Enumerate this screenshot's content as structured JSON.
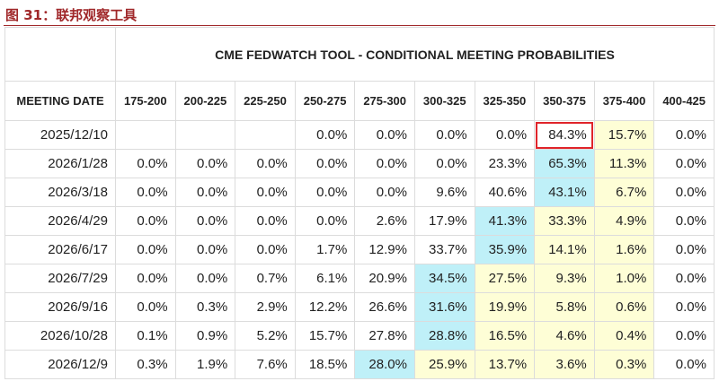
{
  "header": {
    "title": "图 31：联邦观察工具"
  },
  "table": {
    "title": "CME FEDWATCH TOOL - CONDITIONAL MEETING PROBABILITIES",
    "columns": [
      "MEETING DATE",
      "175-200",
      "200-225",
      "225-250",
      "250-275",
      "275-300",
      "300-325",
      "325-350",
      "350-375",
      "375-400",
      "400-425"
    ],
    "rows": [
      [
        "2025/12/10",
        null,
        null,
        null,
        "0.0%",
        "0.0%",
        "0.0%",
        "0.0%",
        "84.3%",
        "15.7%",
        "0.0%"
      ],
      [
        "2026/1/28",
        "0.0%",
        "0.0%",
        "0.0%",
        "0.0%",
        "0.0%",
        "0.0%",
        "23.3%",
        "65.3%",
        "11.3%",
        "0.0%"
      ],
      [
        "2026/3/18",
        "0.0%",
        "0.0%",
        "0.0%",
        "0.0%",
        "0.0%",
        "9.6%",
        "40.6%",
        "43.1%",
        "6.7%",
        "0.0%"
      ],
      [
        "2026/4/29",
        "0.0%",
        "0.0%",
        "0.0%",
        "0.0%",
        "2.6%",
        "17.9%",
        "41.3%",
        "33.3%",
        "4.9%",
        "0.0%"
      ],
      [
        "2026/6/17",
        "0.0%",
        "0.0%",
        "0.0%",
        "1.7%",
        "12.9%",
        "33.7%",
        "35.9%",
        "14.1%",
        "1.6%",
        "0.0%"
      ],
      [
        "2026/7/29",
        "0.0%",
        "0.0%",
        "0.7%",
        "6.1%",
        "20.9%",
        "34.5%",
        "27.5%",
        "9.3%",
        "1.0%",
        "0.0%"
      ],
      [
        "2026/9/16",
        "0.0%",
        "0.3%",
        "2.9%",
        "12.2%",
        "26.6%",
        "31.6%",
        "19.9%",
        "5.8%",
        "0.6%",
        "0.0%"
      ],
      [
        "2026/10/28",
        "0.1%",
        "0.9%",
        "5.2%",
        "15.7%",
        "27.8%",
        "28.8%",
        "16.5%",
        "4.6%",
        "0.4%",
        "0.0%"
      ],
      [
        "2026/12/9",
        "0.3%",
        "1.9%",
        "7.6%",
        "18.5%",
        "28.0%",
        "25.9%",
        "13.7%",
        "3.6%",
        "0.3%",
        "0.0%"
      ]
    ]
  }
}
